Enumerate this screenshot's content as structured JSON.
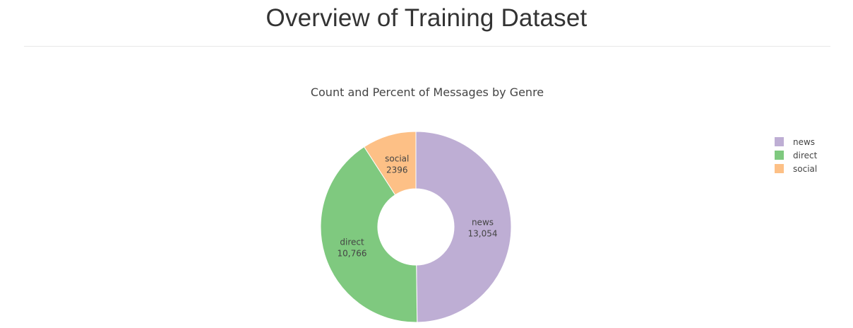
{
  "page": {
    "title": "Overview of Training Dataset"
  },
  "chart_data": {
    "type": "pie",
    "hole": true,
    "title": "Count and Percent of Messages by Genre",
    "categories": [
      "news",
      "direct",
      "social"
    ],
    "values": [
      13054,
      10766,
      2396
    ],
    "data_labels": [
      "13,054",
      "10,766",
      "2396"
    ],
    "colors": [
      "#beaed4",
      "#7fc97f",
      "#fdc086"
    ],
    "legend": {
      "position": "top-right",
      "entries": [
        "news",
        "direct",
        "social"
      ]
    }
  }
}
